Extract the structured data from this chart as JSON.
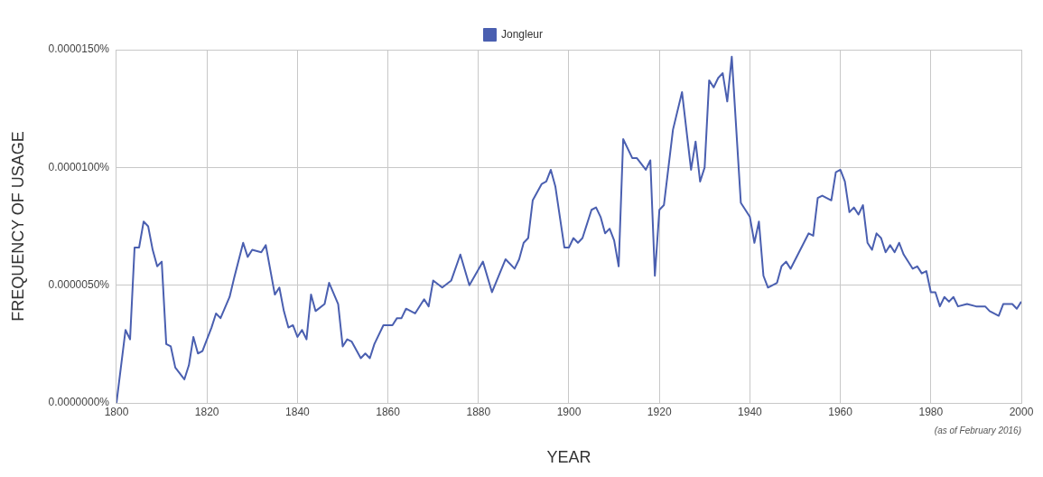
{
  "chart_data": {
    "type": "line",
    "xlabel": "YEAR",
    "ylabel": "FREQUENCY OF USAGE",
    "annotations": [
      "(as of February 2016)"
    ],
    "legend": "top",
    "grid": true,
    "marker": "none",
    "line_style": "solid",
    "xlim": [
      1800,
      2000
    ],
    "xticks": [
      1800,
      1820,
      1840,
      1860,
      1880,
      1900,
      1920,
      1940,
      1960,
      1980,
      2000
    ],
    "ylim": [
      0,
      1.5e-05
    ],
    "yticks": [
      {
        "value": 0,
        "label": "0.0000000%"
      },
      {
        "value": 5e-06,
        "label": "0.0000050%"
      },
      {
        "value": 1e-05,
        "label": "0.0000100%"
      },
      {
        "value": 1.5e-05,
        "label": "0.0000150%"
      }
    ],
    "x": [
      1800,
      1802,
      1803,
      1804,
      1805,
      1806,
      1807,
      1808,
      1809,
      1810,
      1811,
      1812,
      1813,
      1815,
      1816,
      1817,
      1818,
      1819,
      1821,
      1822,
      1823,
      1825,
      1826,
      1828,
      1829,
      1830,
      1832,
      1833,
      1835,
      1836,
      1837,
      1838,
      1839,
      1840,
      1841,
      1842,
      1843,
      1844,
      1846,
      1847,
      1849,
      1850,
      1851,
      1852,
      1854,
      1855,
      1856,
      1857,
      1859,
      1861,
      1862,
      1863,
      1864,
      1866,
      1868,
      1869,
      1870,
      1872,
      1874,
      1876,
      1878,
      1881,
      1883,
      1886,
      1888,
      1889,
      1890,
      1891,
      1892,
      1894,
      1895,
      1896,
      1897,
      1899,
      1900,
      1901,
      1902,
      1903,
      1905,
      1906,
      1907,
      1908,
      1909,
      1910,
      1911,
      1912,
      1914,
      1915,
      1917,
      1918,
      1919,
      1920,
      1921,
      1923,
      1925,
      1927,
      1928,
      1929,
      1930,
      1931,
      1932,
      1933,
      1934,
      1935,
      1936,
      1938,
      1940,
      1941,
      1942,
      1943,
      1944,
      1946,
      1947,
      1948,
      1949,
      1953,
      1954,
      1955,
      1956,
      1958,
      1959,
      1960,
      1961,
      1962,
      1963,
      1964,
      1965,
      1966,
      1967,
      1968,
      1969,
      1970,
      1971,
      1972,
      1973,
      1974,
      1976,
      1977,
      1978,
      1979,
      1980,
      1981,
      1982,
      1983,
      1984,
      1985,
      1986,
      1988,
      1990,
      1992,
      1993,
      1995,
      1996,
      1998,
      1999,
      2000
    ],
    "series": [
      {
        "name": "Jongleur",
        "color": "#4a5fb0",
        "values": [
          0,
          3.1e-06,
          2.7e-06,
          6.6e-06,
          6.6e-06,
          7.7e-06,
          7.5e-06,
          6.5e-06,
          5.8e-06,
          6e-06,
          2.5e-06,
          2.4e-06,
          1.5e-06,
          1e-06,
          1.6e-06,
          2.8e-06,
          2.1e-06,
          2.2e-06,
          3.2e-06,
          3.8e-06,
          3.6e-06,
          4.5e-06,
          5.3e-06,
          6.8e-06,
          6.2e-06,
          6.5e-06,
          6.4e-06,
          6.7e-06,
          4.6e-06,
          4.9e-06,
          3.9e-06,
          3.2e-06,
          3.3e-06,
          2.8e-06,
          3.1e-06,
          2.7e-06,
          4.6e-06,
          3.9e-06,
          4.2e-06,
          5.1e-06,
          4.2e-06,
          2.4e-06,
          2.7e-06,
          2.6e-06,
          1.9e-06,
          2.1e-06,
          1.9e-06,
          2.5e-06,
          3.3e-06,
          3.3e-06,
          3.6e-06,
          3.6e-06,
          4e-06,
          3.8e-06,
          4.4e-06,
          4.1e-06,
          5.2e-06,
          4.9e-06,
          5.2e-06,
          6.3e-06,
          5e-06,
          6e-06,
          4.7e-06,
          6.1e-06,
          5.7e-06,
          6.1e-06,
          6.8e-06,
          7e-06,
          8.6e-06,
          9.3e-06,
          9.4e-06,
          9.9e-06,
          9.2e-06,
          6.6e-06,
          6.6e-06,
          7e-06,
          6.8e-06,
          7e-06,
          8.2e-06,
          8.3e-06,
          7.9e-06,
          7.2e-06,
          7.4e-06,
          6.9e-06,
          5.8e-06,
          1.12e-05,
          1.04e-05,
          1.04e-05,
          9.9e-06,
          1.03e-05,
          5.4e-06,
          8.2e-06,
          8.4e-06,
          1.16e-05,
          1.32e-05,
          9.9e-06,
          1.11e-05,
          9.4e-06,
          1e-05,
          1.37e-05,
          1.34e-05,
          1.38e-05,
          1.4e-05,
          1.28e-05,
          1.47e-05,
          8.5e-06,
          7.9e-06,
          6.8e-06,
          7.7e-06,
          5.4e-06,
          4.9e-06,
          5.1e-06,
          5.8e-06,
          6e-06,
          5.7e-06,
          7.2e-06,
          7.1e-06,
          8.7e-06,
          8.8e-06,
          8.6e-06,
          9.8e-06,
          9.9e-06,
          9.4e-06,
          8.1e-06,
          8.3e-06,
          8e-06,
          8.4e-06,
          6.8e-06,
          6.5e-06,
          7.2e-06,
          7e-06,
          6.4e-06,
          6.7e-06,
          6.4e-06,
          6.8e-06,
          6.3e-06,
          5.7e-06,
          5.8e-06,
          5.5e-06,
          5.6e-06,
          4.7e-06,
          4.7e-06,
          4.1e-06,
          4.5e-06,
          4.3e-06,
          4.5e-06,
          4.1e-06,
          4.2e-06,
          4.1e-06,
          4.1e-06,
          3.9e-06,
          3.7e-06,
          4.2e-06,
          4.2e-06,
          4e-06,
          4.3e-06
        ]
      }
    ]
  }
}
